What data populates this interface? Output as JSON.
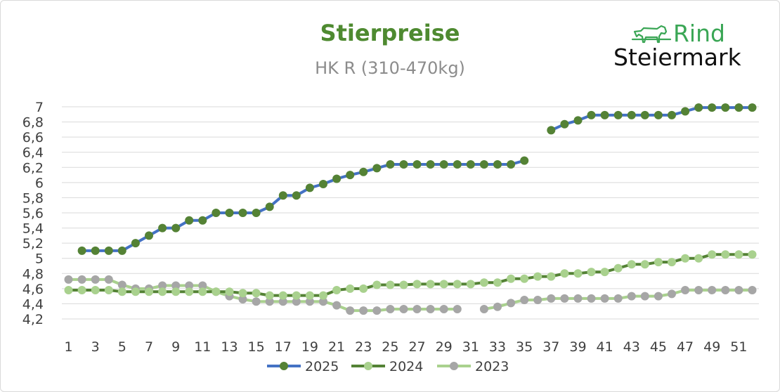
{
  "chart_data": {
    "type": "line",
    "title": "Stierpreise",
    "subtitle": "HK R (310-470kg)",
    "xlabel": "",
    "ylabel": "",
    "ylim": [
      4.2,
      7.0
    ],
    "xlim": [
      1,
      52
    ],
    "y_ticks": [
      "4,2",
      "4,4",
      "4,6",
      "4,8",
      "5",
      "5,2",
      "5,4",
      "5,6",
      "5,8",
      "6",
      "6,2",
      "6,4",
      "6,6",
      "6,8",
      "7"
    ],
    "x_ticks": [
      "1",
      "3",
      "5",
      "7",
      "9",
      "11",
      "13",
      "15",
      "17",
      "19",
      "21",
      "23",
      "25",
      "27",
      "29",
      "31",
      "33",
      "35",
      "37",
      "39",
      "41",
      "43",
      "45",
      "47",
      "49",
      "51"
    ],
    "grid": true,
    "legend_position": "bottom",
    "x": [
      1,
      2,
      3,
      4,
      5,
      6,
      7,
      8,
      9,
      10,
      11,
      12,
      13,
      14,
      15,
      16,
      17,
      18,
      19,
      20,
      21,
      22,
      23,
      24,
      25,
      26,
      27,
      28,
      29,
      30,
      31,
      32,
      33,
      34,
      35,
      36,
      37,
      38,
      39,
      40,
      41,
      42,
      43,
      44,
      45,
      46,
      47,
      48,
      49,
      50,
      51,
      52
    ],
    "series": [
      {
        "name": "2025",
        "line_color": "#4472c4",
        "marker_color": "#548235",
        "values": [
          null,
          5.1,
          5.1,
          5.1,
          5.1,
          5.2,
          5.3,
          5.4,
          5.4,
          5.5,
          5.5,
          5.6,
          5.6,
          5.6,
          5.6,
          5.68,
          5.83,
          5.83,
          5.93,
          5.98,
          6.05,
          6.1,
          6.14,
          6.19,
          6.24,
          6.24,
          6.24,
          6.24,
          6.24,
          6.24,
          6.24,
          6.24,
          6.24,
          6.24,
          6.29,
          null,
          6.69,
          6.77,
          6.82,
          6.89,
          6.89,
          6.89,
          6.89,
          6.89,
          6.89,
          6.89,
          6.94,
          6.99,
          6.99,
          6.99,
          6.99,
          6.99
        ]
      },
      {
        "name": "2024",
        "line_color": "#548235",
        "marker_color": "#a9d18e",
        "values": [
          4.58,
          4.58,
          4.58,
          4.58,
          4.56,
          4.56,
          4.56,
          4.56,
          4.56,
          4.56,
          4.56,
          4.56,
          4.56,
          4.54,
          4.54,
          4.51,
          4.51,
          4.51,
          4.51,
          4.51,
          4.58,
          4.6,
          4.6,
          4.65,
          4.65,
          4.65,
          4.66,
          4.66,
          4.66,
          4.66,
          4.66,
          4.68,
          4.68,
          4.73,
          4.73,
          4.76,
          4.76,
          4.8,
          4.8,
          4.82,
          4.82,
          4.87,
          4.92,
          4.92,
          4.95,
          4.95,
          5.0,
          5.0,
          5.05,
          5.05,
          5.05,
          5.05
        ]
      },
      {
        "name": "2023",
        "line_color": "#a9d18e",
        "marker_color": "#a6a6a6",
        "values": [
          4.72,
          4.72,
          4.72,
          4.72,
          4.65,
          4.6,
          4.6,
          4.64,
          4.64,
          4.64,
          4.64,
          4.56,
          4.5,
          4.46,
          4.43,
          4.43,
          4.43,
          4.43,
          4.43,
          4.43,
          4.38,
          4.31,
          4.31,
          4.31,
          4.33,
          4.33,
          4.33,
          4.33,
          4.33,
          4.33,
          null,
          4.33,
          4.36,
          4.41,
          4.45,
          4.45,
          4.47,
          4.47,
          4.47,
          4.47,
          4.47,
          4.47,
          4.5,
          4.5,
          4.5,
          4.53,
          4.58,
          4.58,
          4.58,
          4.58,
          4.58,
          4.58
        ]
      }
    ]
  },
  "logo": {
    "line1": "Rind",
    "line2": "Steiermark",
    "icon": "cow-icon",
    "color": "#3aa655"
  }
}
